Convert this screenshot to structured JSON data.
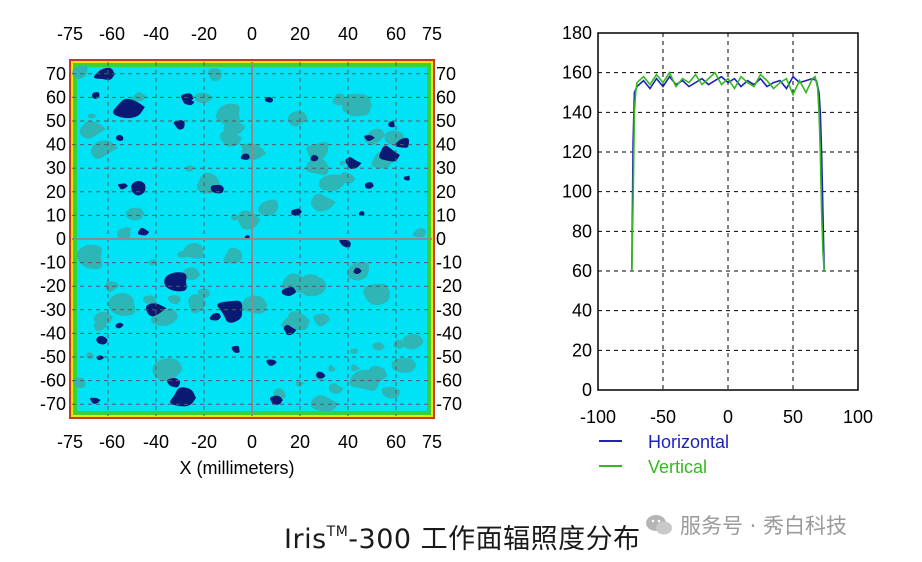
{
  "chart_data": [
    {
      "type": "heatmap",
      "xlabel": "X (millimeters)",
      "x_ticks": [
        "-75",
        "-60",
        "-40",
        "-20",
        "0",
        "20",
        "40",
        "60",
        "75"
      ],
      "y_ticks": [
        "70",
        "60",
        "50",
        "40",
        "30",
        "20",
        "10",
        "0",
        "-10",
        "-20",
        "-30",
        "-40",
        "-50",
        "-60",
        "-70"
      ],
      "xlim": [
        -75,
        75
      ],
      "ylim": [
        -75,
        75
      ],
      "grid": true,
      "colors": {
        "base": "#00e3f6",
        "mid": "#2eb5b5",
        "low": "#0a1a72",
        "edge_green": "#33cc33",
        "edge_yellow": "#e8e800",
        "edge_red": "#d02020"
      }
    },
    {
      "type": "line",
      "xlim": [
        -100,
        100
      ],
      "ylim": [
        0,
        180
      ],
      "x_ticks": [
        "-100",
        "-50",
        "0",
        "50",
        "100"
      ],
      "y_ticks": [
        "180",
        "160",
        "140",
        "120",
        "100",
        "80",
        "60",
        "40",
        "20",
        "0"
      ],
      "grid": true,
      "legend_position": "bottom-left",
      "series": [
        {
          "name": "Horizontal",
          "color": "#1f22b8",
          "x": [
            -74,
            -73,
            -72,
            -70,
            -65,
            -60,
            -55,
            -50,
            -45,
            -40,
            -35,
            -30,
            -25,
            -20,
            -15,
            -10,
            -5,
            0,
            5,
            10,
            15,
            20,
            25,
            30,
            35,
            40,
            45,
            50,
            55,
            60,
            65,
            68,
            70,
            71,
            72,
            73,
            74
          ],
          "y": [
            60,
            125,
            150,
            153,
            156,
            152,
            157,
            153,
            158,
            154,
            156,
            153,
            155,
            157,
            154,
            156,
            158,
            155,
            157,
            153,
            156,
            154,
            157,
            153,
            155,
            156,
            152,
            158,
            155,
            156,
            157,
            156,
            150,
            140,
            120,
            90,
            60
          ]
        },
        {
          "name": "Vertical",
          "color": "#33b81f",
          "x": [
            -74,
            -73,
            -72,
            -71,
            -70,
            -65,
            -60,
            -55,
            -50,
            -45,
            -40,
            -35,
            -30,
            -25,
            -20,
            -15,
            -10,
            -5,
            0,
            5,
            10,
            15,
            20,
            25,
            30,
            35,
            40,
            45,
            50,
            55,
            60,
            65,
            67,
            69,
            70,
            71,
            72,
            73,
            74
          ],
          "y": [
            60,
            95,
            140,
            150,
            155,
            158,
            154,
            159,
            155,
            160,
            153,
            157,
            155,
            159,
            154,
            157,
            160,
            154,
            157,
            152,
            158,
            155,
            153,
            159,
            156,
            152,
            155,
            157,
            149,
            156,
            150,
            157,
            158,
            152,
            140,
            120,
            90,
            70,
            60
          ]
        }
      ]
    }
  ],
  "caption": {
    "prefix": "Iris",
    "tm": "TM",
    "suffix": "-300 工作面辐照度分布"
  },
  "watermark": "服务号 · 秀白科技"
}
